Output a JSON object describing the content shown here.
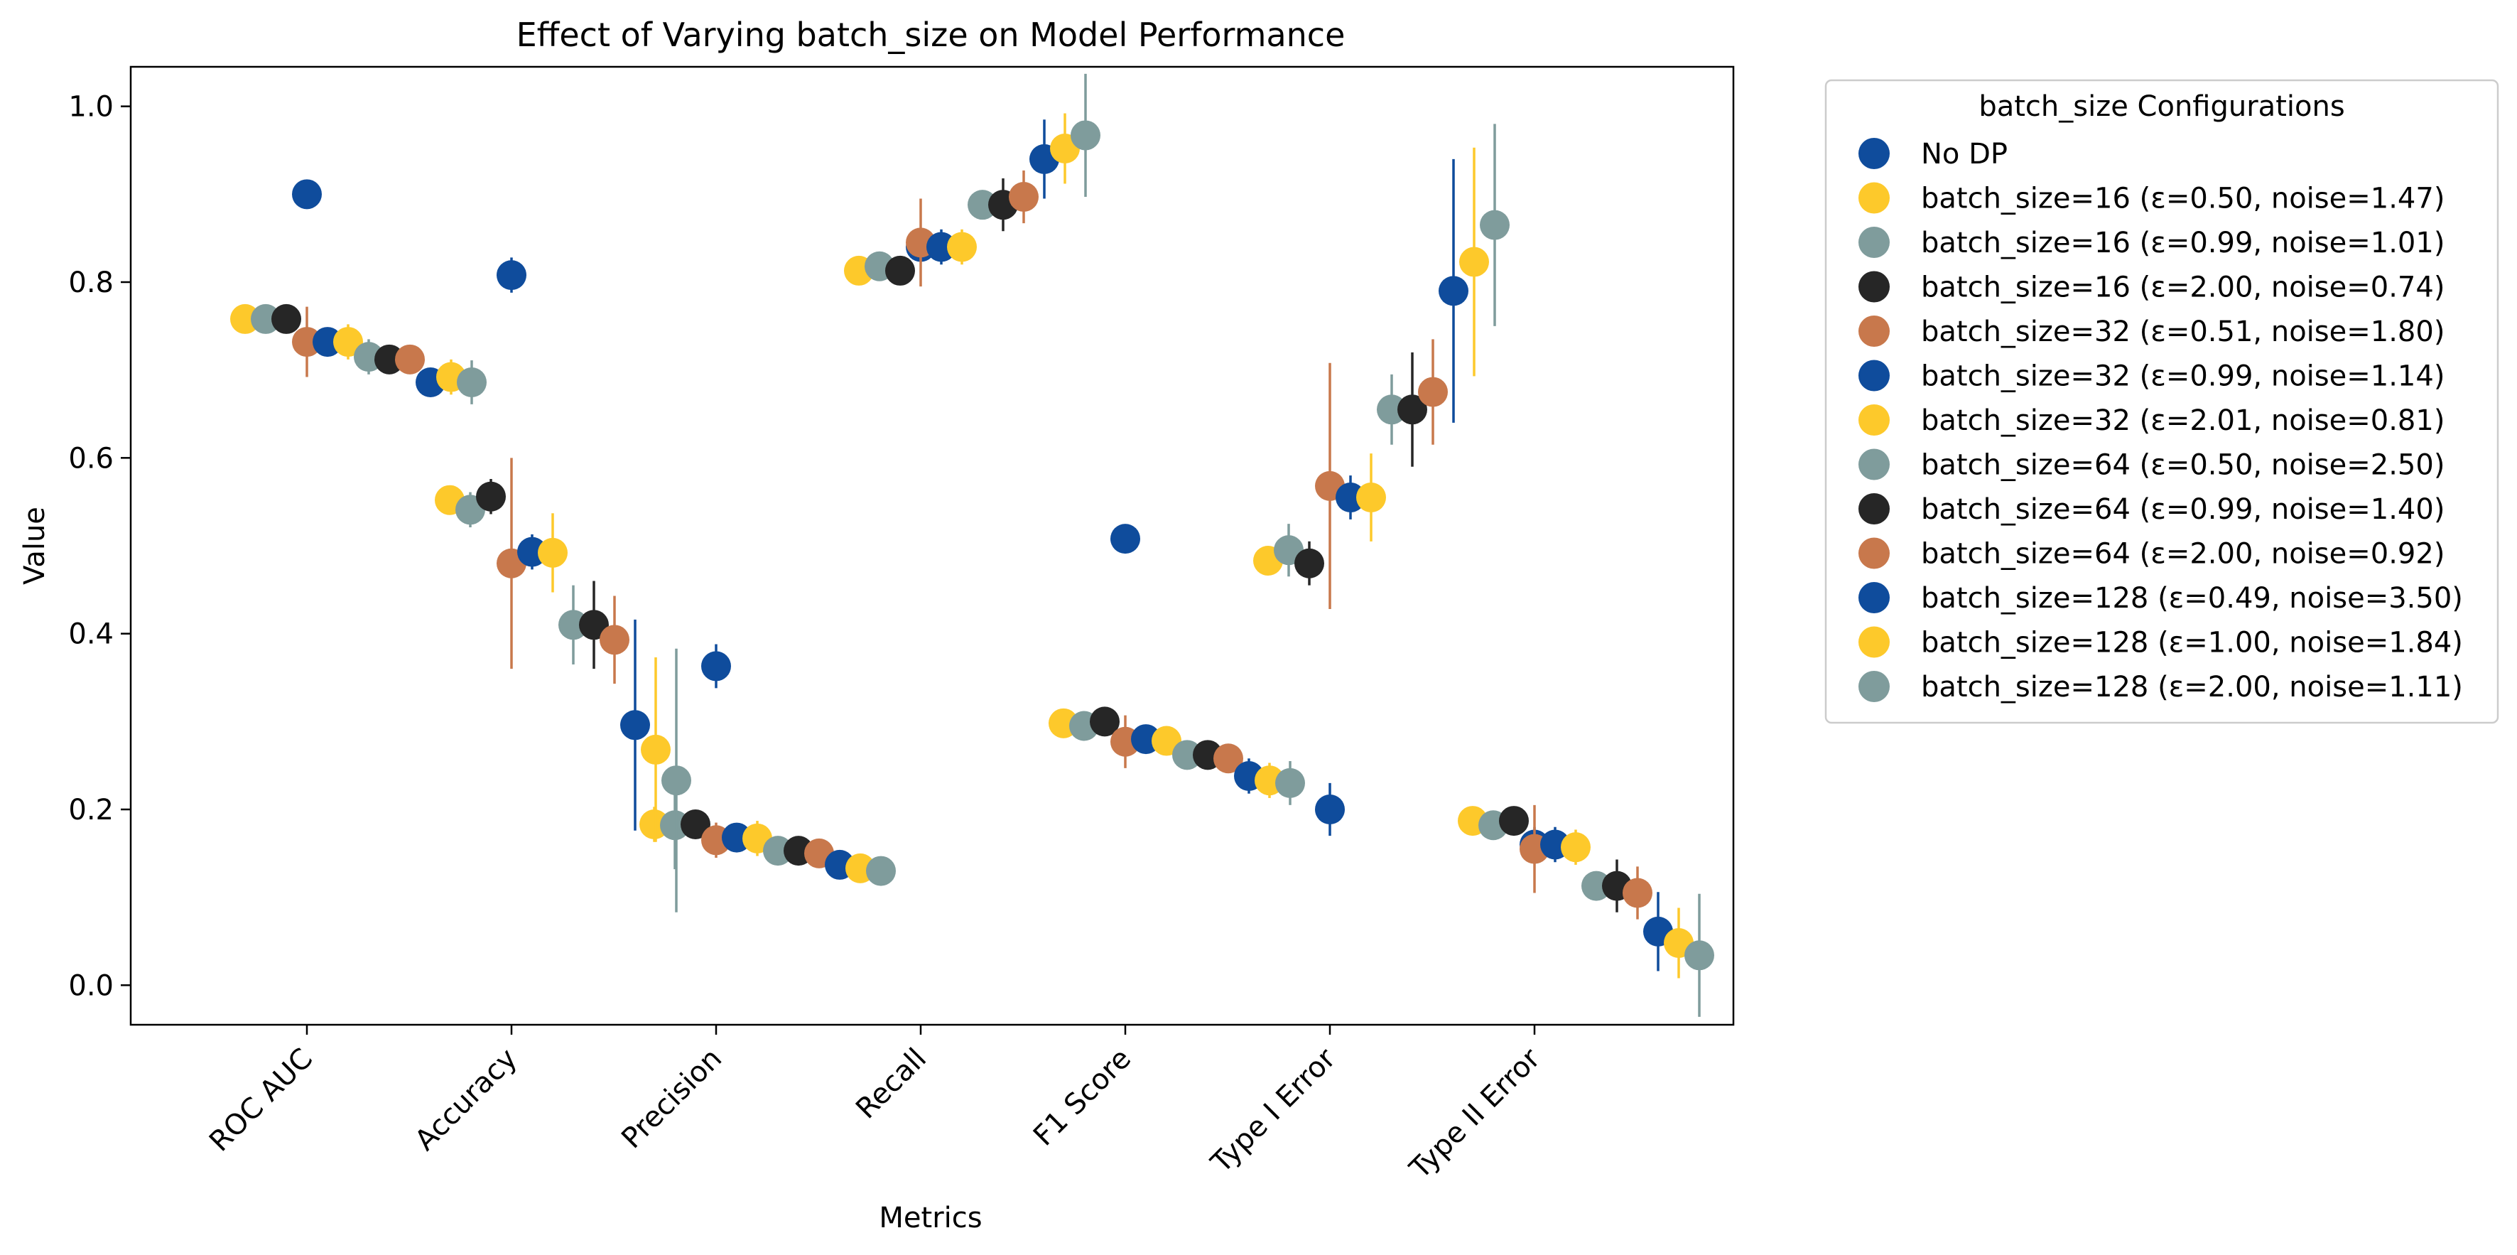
{
  "chart_data": {
    "type": "scatter",
    "title": "Effect of Varying batch_size on Model Performance",
    "xlabel": "Metrics",
    "ylabel": "Value",
    "ylim": [
      -0.045,
      1.045
    ],
    "yticks": [
      0.0,
      0.2,
      0.4,
      0.6,
      0.8,
      1.0
    ],
    "ytick_labels": [
      "0.0",
      "0.2",
      "0.4",
      "0.6",
      "0.8",
      "1.0"
    ],
    "categories": [
      "ROC AUC",
      "Accuracy",
      "Precision",
      "Recall",
      "F1 Score",
      "Type I Error",
      "Type II Error"
    ],
    "grid": false,
    "legend": {
      "title": "batch_size Configurations",
      "placement": "outside-top-right"
    },
    "colors": {
      "blue": "#0f4c9c",
      "yellow": "#fdc92b",
      "gray": "#7f9c9c",
      "black": "#262626",
      "orange": "#c8784c"
    },
    "series": [
      {
        "name": "No DP",
        "color": "#0f4c9c",
        "values": [
          0.9,
          0.808,
          0.363,
          0.84,
          0.508,
          0.2,
          0.16
        ],
        "errors": [
          0.005,
          0.02,
          0.025,
          0.01,
          0.015,
          0.03,
          0.02
        ]
      },
      {
        "name": "batch_size=16 (ε=0.50, noise=1.47)",
        "color": "#fdc92b",
        "values": [
          0.758,
          0.552,
          0.183,
          0.813,
          0.298,
          0.483,
          0.187
        ],
        "errors": [
          0.01,
          0.01,
          0.02,
          0.01,
          0.01,
          0.015,
          0.01
        ]
      },
      {
        "name": "batch_size=16 (ε=0.99, noise=1.01)",
        "color": "#7f9c9c",
        "values": [
          0.758,
          0.541,
          0.182,
          0.818,
          0.295,
          0.495,
          0.182
        ],
        "errors": [
          0.01,
          0.02,
          0.05,
          0.01,
          0.01,
          0.03,
          0.01
        ]
      },
      {
        "name": "batch_size=16 (ε=2.00, noise=0.74)",
        "color": "#262626",
        "values": [
          0.758,
          0.556,
          0.183,
          0.813,
          0.3,
          0.48,
          0.187
        ],
        "errors": [
          0.01,
          0.02,
          0.01,
          0.01,
          0.01,
          0.025,
          0.01
        ]
      },
      {
        "name": "batch_size=32 (ε=0.51, noise=1.80)",
        "color": "#c8784c",
        "values": [
          0.732,
          0.48,
          0.165,
          0.845,
          0.277,
          0.568,
          0.155
        ],
        "errors": [
          0.04,
          0.12,
          0.02,
          0.05,
          0.03,
          0.14,
          0.05
        ]
      },
      {
        "name": "batch_size=32 (ε=0.99, noise=1.14)",
        "color": "#0f4c9c",
        "values": [
          0.732,
          0.493,
          0.168,
          0.84,
          0.28,
          0.555,
          0.16
        ],
        "errors": [
          0.01,
          0.02,
          0.01,
          0.02,
          0.01,
          0.025,
          0.02
        ]
      },
      {
        "name": "batch_size=32 (ε=2.01, noise=0.81)",
        "color": "#fdc92b",
        "values": [
          0.732,
          0.492,
          0.167,
          0.84,
          0.278,
          0.555,
          0.157
        ],
        "errors": [
          0.02,
          0.045,
          0.02,
          0.02,
          0.015,
          0.05,
          0.02
        ]
      },
      {
        "name": "batch_size=64 (ε=0.50, noise=2.50)",
        "color": "#7f9c9c",
        "values": [
          0.715,
          0.41,
          0.153,
          0.888,
          0.262,
          0.655,
          0.113
        ],
        "errors": [
          0.02,
          0.045,
          0.015,
          0.01,
          0.01,
          0.04,
          0.015
        ]
      },
      {
        "name": "batch_size=64 (ε=0.99, noise=1.40)",
        "color": "#262626",
        "values": [
          0.712,
          0.41,
          0.153,
          0.888,
          0.262,
          0.655,
          0.113
        ],
        "errors": [
          0.015,
          0.05,
          0.015,
          0.03,
          0.01,
          0.065,
          0.03
        ]
      },
      {
        "name": "batch_size=64 (ε=2.00, noise=0.92)",
        "color": "#c8784c",
        "values": [
          0.712,
          0.393,
          0.15,
          0.897,
          0.258,
          0.675,
          0.105
        ],
        "errors": [
          0.01,
          0.05,
          0.015,
          0.03,
          0.01,
          0.06,
          0.03
        ]
      },
      {
        "name": "batch_size=128 (ε=0.49, noise=3.50)",
        "color": "#0f4c9c",
        "values": [
          0.686,
          0.296,
          0.137,
          0.94,
          0.238,
          0.79,
          0.061
        ],
        "errors": [
          0.01,
          0.12,
          0.015,
          0.045,
          0.02,
          0.15,
          0.045
        ]
      },
      {
        "name": "batch_size=128 (ε=1.00, noise=1.84)",
        "color": "#fdc92b",
        "values": [
          0.692,
          0.268,
          0.133,
          0.952,
          0.233,
          0.823,
          0.048
        ],
        "errors": [
          0.02,
          0.105,
          0.01,
          0.04,
          0.02,
          0.13,
          0.04
        ]
      },
      {
        "name": "batch_size=128 (ε=2.00, noise=1.11)",
        "color": "#7f9c9c",
        "values": [
          0.686,
          0.233,
          0.13,
          0.967,
          0.23,
          0.865,
          0.034
        ],
        "errors": [
          0.025,
          0.15,
          0.01,
          0.07,
          0.025,
          0.115,
          0.07
        ]
      }
    ]
  }
}
